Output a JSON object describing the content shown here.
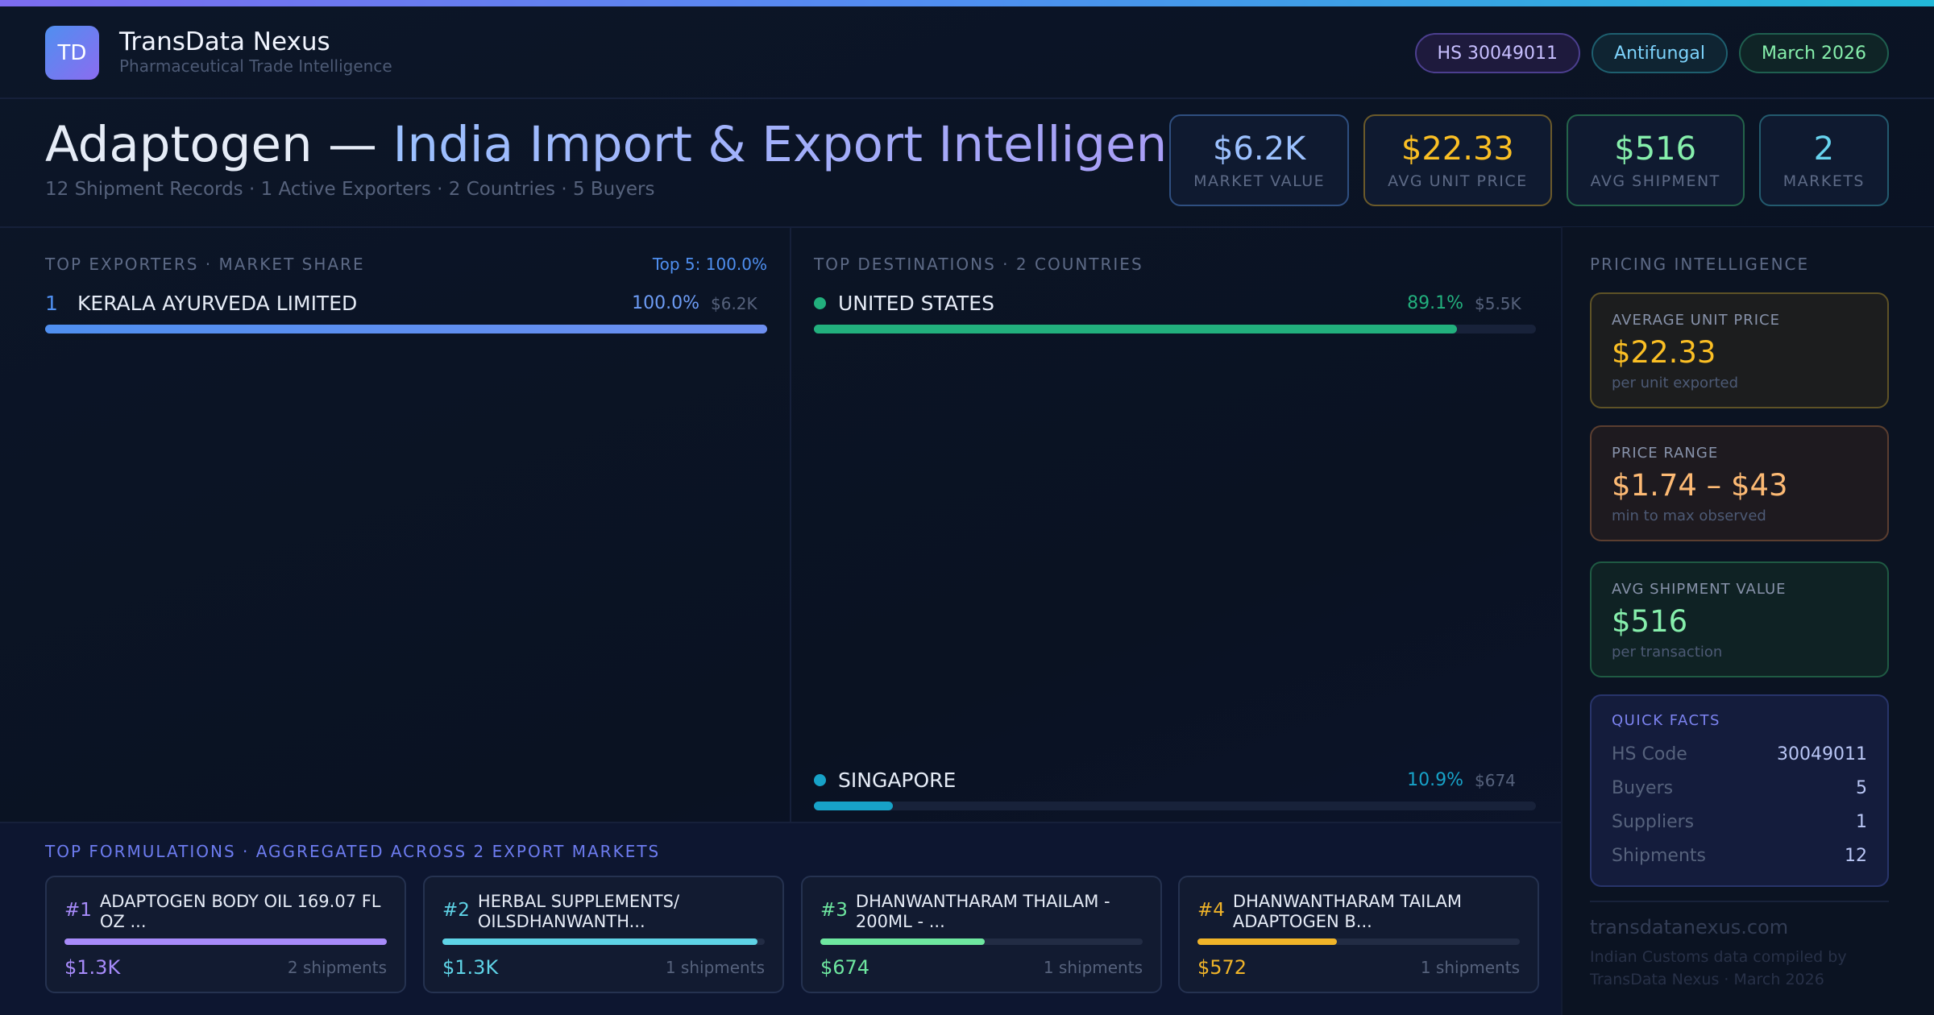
{
  "brand": {
    "logo": "TD",
    "name": "TransData Nexus",
    "tagline": "Pharmaceutical Trade Intelligence"
  },
  "pills": [
    "HS 30049011",
    "Antifungal",
    "March 2026"
  ],
  "hero": {
    "title_main": "Adaptogen —",
    "title_accent": "India Import & Export Intelligence",
    "subtitle": "12 Shipment Records · 1 Active Exporters · 2 Countries · 5 Buyers"
  },
  "kpis": [
    {
      "value": "$6.2K",
      "label": "MARKET VALUE",
      "color": "#9cc1ff",
      "border": "#2f4f80"
    },
    {
      "value": "$22.33",
      "label": "AVG UNIT PRICE",
      "color": "#fbbf24",
      "border": "#6b5a2a"
    },
    {
      "value": "$516",
      "label": "AVG SHIPMENT",
      "color": "#86efac",
      "border": "#24644a"
    },
    {
      "value": "2",
      "label": "MARKETS",
      "color": "#67d3ee",
      "border": "#235a6e"
    }
  ],
  "exporters": {
    "heading": "TOP EXPORTERS · MARKET SHARE",
    "note": "Top 5: 100.0%",
    "rows": [
      {
        "rank": "1",
        "name": "KERALA AYURVEDA LIMITED",
        "share": 100.0,
        "share_label": "100.0%",
        "amount": "$6.2K"
      }
    ]
  },
  "destinations": {
    "heading": "TOP DESTINATIONS · 2 COUNTRIES",
    "rows": [
      {
        "name": "UNITED STATES",
        "share": 89.1,
        "share_label": "89.1%",
        "amount": "$5.5K",
        "color": "#22b07d"
      },
      {
        "name": "SINGAPORE",
        "share": 10.9,
        "share_label": "10.9%",
        "amount": "$674",
        "color": "#17a2c8"
      }
    ]
  },
  "pricing": {
    "heading": "PRICING INTELLIGENCE",
    "cards": [
      {
        "label": "AVERAGE UNIT PRICE",
        "value": "$22.33",
        "note": "per unit exported",
        "color": "#fbbf24",
        "border": "#5e5226",
        "bg": "#1c1d1e"
      },
      {
        "label": "PRICE RANGE",
        "value": "$1.74 – $43",
        "note": "min to max observed",
        "color": "#fdba74",
        "border": "#5b3e30",
        "bg": "#1e1a1f"
      },
      {
        "label": "AVG SHIPMENT VALUE",
        "value": "$516",
        "note": "per transaction",
        "color": "#86efac",
        "border": "#1f5a43",
        "bg": "#0f2224"
      }
    ],
    "quick_facts": {
      "heading": "QUICK FACTS",
      "rows": [
        {
          "label": "HS Code",
          "value": "30049011"
        },
        {
          "label": "Buyers",
          "value": "5"
        },
        {
          "label": "Suppliers",
          "value": "1"
        },
        {
          "label": "Shipments",
          "value": "12"
        }
      ]
    }
  },
  "footer": {
    "domain": "transdatanexus.com",
    "note": "Indian Customs data compiled by TransData Nexus · March 2026"
  },
  "formulations": {
    "heading": "TOP FORMULATIONS · AGGREGATED ACROSS 2 EXPORT MARKETS",
    "items": [
      {
        "rank": "#1",
        "name": "ADAPTOGEN BODY OIL 169.07 FL OZ ...",
        "value": 1320,
        "value_label": "$1.3K",
        "shipments": "2 shipments",
        "color": "#a78bfa"
      },
      {
        "rank": "#2",
        "name": "HERBAL SUPPLEMENTS/ OILSDHANWANTH...",
        "value": 1290,
        "value_label": "$1.3K",
        "shipments": "1 shipments",
        "color": "#5ed3e6"
      },
      {
        "rank": "#3",
        "name": "DHANWANTHARAM THAILAM - 200ML - ...",
        "value": 674,
        "value_label": "$674",
        "shipments": "1 shipments",
        "color": "#6ee7a0"
      },
      {
        "rank": "#4",
        "name": "DHANWANTHARAM TAILAM ADAPTOGEN B...",
        "value": 572,
        "value_label": "$572",
        "shipments": "1 shipments",
        "color": "#f0b429"
      }
    ]
  }
}
